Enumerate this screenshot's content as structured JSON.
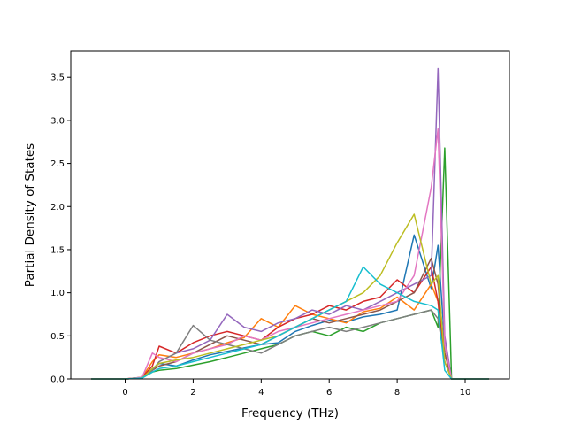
{
  "chart_data": {
    "type": "line",
    "title": "",
    "xlabel": "Frequency (THz)",
    "ylabel": "Partial Density of States",
    "xlim": [
      -1.6,
      11.3
    ],
    "ylim": [
      0.0,
      3.8
    ],
    "xticks": [
      0,
      2,
      4,
      6,
      8,
      10
    ],
    "yticks": [
      0.0,
      0.5,
      1.0,
      1.5,
      2.0,
      2.5,
      3.0,
      3.5
    ],
    "xtick_labels": [
      "0",
      "2",
      "4",
      "6",
      "8",
      "10"
    ],
    "ytick_labels": [
      "0.0",
      "0.5",
      "1.0",
      "1.5",
      "2.0",
      "2.5",
      "3.0",
      "3.5"
    ],
    "grid": false,
    "legend": "none",
    "color_cycle": [
      "#1f77b4",
      "#ff7f0e",
      "#2ca02c",
      "#d62728",
      "#9467bd",
      "#8c564b",
      "#e377c2",
      "#7f7f7f",
      "#bcbd22",
      "#17becf"
    ],
    "x": [
      -1.0,
      0.0,
      0.5,
      0.8,
      1.0,
      1.5,
      2.0,
      2.5,
      3.0,
      3.5,
      4.0,
      4.5,
      5.0,
      5.5,
      6.0,
      6.5,
      7.0,
      7.5,
      8.0,
      8.5,
      9.0,
      9.2,
      9.4,
      9.6,
      10.7
    ],
    "series": [
      {
        "values": [
          0,
          0,
          0.01,
          0.12,
          0.18,
          0.15,
          0.22,
          0.28,
          0.32,
          0.36,
          0.4,
          0.42,
          0.55,
          0.62,
          0.68,
          0.66,
          0.72,
          0.75,
          0.8,
          1.67,
          1.05,
          1.55,
          0.4,
          0,
          0
        ]
      },
      {
        "values": [
          0,
          0,
          0.02,
          0.2,
          0.28,
          0.25,
          0.3,
          0.35,
          0.42,
          0.48,
          0.7,
          0.6,
          0.85,
          0.75,
          0.7,
          0.65,
          0.78,
          0.82,
          0.95,
          0.8,
          1.1,
          0.9,
          0.3,
          0,
          0
        ]
      },
      {
        "values": [
          0,
          0,
          0.01,
          0.08,
          0.1,
          0.12,
          0.16,
          0.2,
          0.25,
          0.3,
          0.35,
          0.4,
          0.5,
          0.55,
          0.5,
          0.6,
          0.55,
          0.65,
          0.7,
          0.75,
          0.8,
          0.6,
          2.68,
          0,
          0
        ]
      },
      {
        "values": [
          0,
          0,
          0.02,
          0.15,
          0.38,
          0.3,
          0.42,
          0.5,
          0.55,
          0.5,
          0.45,
          0.6,
          0.7,
          0.75,
          0.85,
          0.8,
          0.9,
          0.95,
          1.15,
          1.0,
          1.3,
          0.9,
          0.2,
          0,
          0
        ]
      },
      {
        "values": [
          0,
          0,
          0.01,
          0.1,
          0.2,
          0.3,
          0.35,
          0.45,
          0.75,
          0.6,
          0.55,
          0.65,
          0.7,
          0.8,
          0.75,
          0.85,
          0.8,
          0.9,
          1.0,
          1.1,
          1.2,
          3.6,
          0.5,
          0,
          0
        ]
      },
      {
        "values": [
          0,
          0,
          0.01,
          0.1,
          0.15,
          0.2,
          0.3,
          0.4,
          0.5,
          0.45,
          0.4,
          0.5,
          0.6,
          0.7,
          0.65,
          0.7,
          0.75,
          0.8,
          0.9,
          1.0,
          1.4,
          1.1,
          0.3,
          0,
          0
        ]
      },
      {
        "values": [
          0,
          0,
          0.02,
          0.3,
          0.25,
          0.2,
          0.3,
          0.35,
          0.4,
          0.5,
          0.45,
          0.55,
          0.6,
          0.65,
          0.7,
          0.75,
          0.8,
          0.85,
          0.9,
          1.2,
          2.22,
          2.9,
          0.4,
          0,
          0
        ]
      },
      {
        "values": [
          0,
          0,
          0.01,
          0.1,
          0.2,
          0.3,
          0.62,
          0.45,
          0.4,
          0.35,
          0.3,
          0.4,
          0.5,
          0.55,
          0.6,
          0.55,
          0.6,
          0.65,
          0.7,
          0.75,
          0.8,
          0.7,
          0.2,
          0,
          0
        ]
      },
      {
        "values": [
          0,
          0,
          0.01,
          0.12,
          0.18,
          0.22,
          0.25,
          0.3,
          0.35,
          0.4,
          0.45,
          0.5,
          0.6,
          0.7,
          0.8,
          0.9,
          1.0,
          1.2,
          1.58,
          1.91,
          1.1,
          1.2,
          0.2,
          0,
          0
        ]
      },
      {
        "values": [
          0,
          0,
          0.01,
          0.08,
          0.12,
          0.15,
          0.2,
          0.25,
          0.3,
          0.35,
          0.4,
          0.5,
          0.6,
          0.7,
          0.8,
          0.9,
          1.3,
          1.1,
          1.0,
          0.9,
          0.85,
          0.8,
          0.1,
          0,
          0
        ]
      }
    ]
  }
}
